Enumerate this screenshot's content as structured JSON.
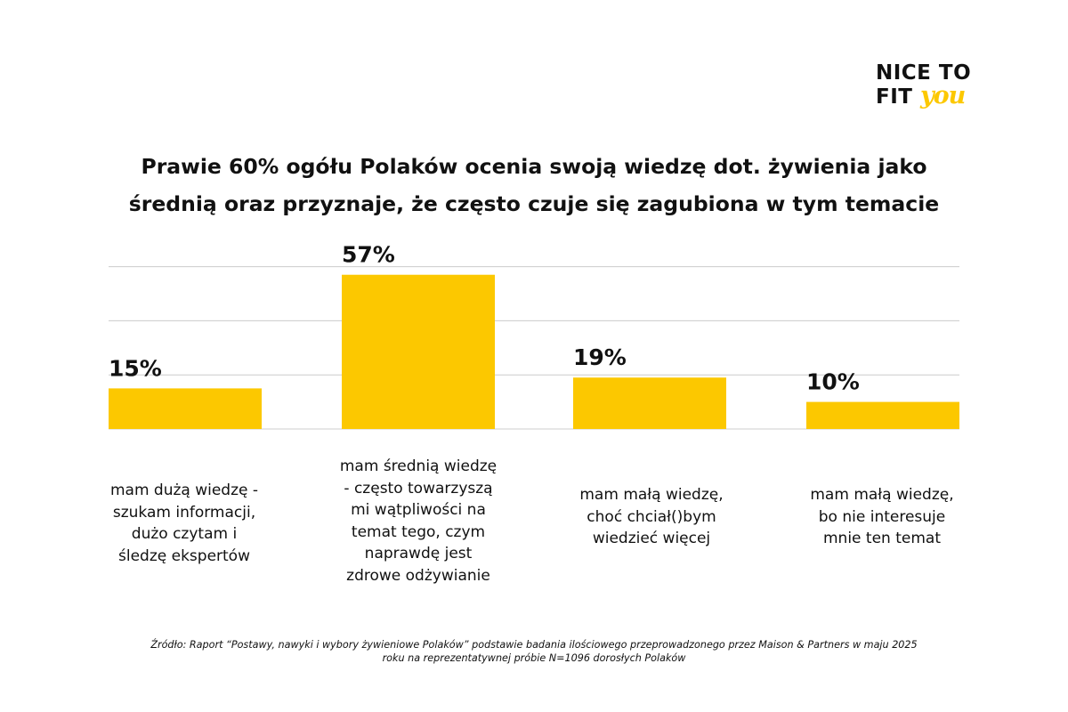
{
  "logo": {
    "line1": "NICE TO",
    "line2_main": "FIT ",
    "line2_accent": "you"
  },
  "title_lines": [
    "Prawie 60% ogółu Polaków ocenia swoją wiedzę dot. żywienia jako",
    "średnią oraz przyznaje, że często czuje się zagubiona w tym temacie"
  ],
  "colors": {
    "bar": "#fcc800",
    "grid": "#cccccc",
    "text": "#111111"
  },
  "chart_data": {
    "type": "bar",
    "title": "Prawie 60% ogółu Polaków ocenia swoją wiedzę dot. żywienia jako średnią oraz przyznaje, że często czuje się zagubiona w tym temacie",
    "categories": [
      "mam dużą wiedzę - szukam informacji, dużo czytam i śledzę ekspertów",
      "mam średnią wiedzę - często towarzyszą mi wątpliwości na temat tego, czym naprawdę jest zdrowe odżywianie",
      "mam małą wiedzę, choć chciał()bym wiedzieć więcej",
      "mam małą wiedzę, bo nie interesuje mnie ten temat"
    ],
    "values": [
      15,
      57,
      19,
      10
    ],
    "value_labels": [
      "15%",
      "57%",
      "19%",
      "10%"
    ],
    "unit": "%",
    "ylim": [
      0,
      60
    ],
    "grid": true,
    "legend": "none"
  },
  "category_label_lines": [
    [
      "mam dużą wiedzę -",
      "szukam informacji,",
      "dużo czytam i",
      "śledzę ekspertów"
    ],
    [
      "mam średnią wiedzę",
      " -  często towarzyszą",
      "mi wątpliwości na",
      "temat tego, czym",
      "naprawdę jest",
      "zdrowe odżywianie"
    ],
    [
      "mam małą wiedzę,",
      "choć chciał()bym",
      "wiedzieć więcej"
    ],
    [
      "mam małą wiedzę,",
      "bo nie interesuje",
      "mnie ten temat"
    ]
  ],
  "source_lines": [
    "Źródło: Raport “Postawy, nawyki i wybory żywieniowe Polaków” podstawie badania ilościowego przeprowadzonego przez Maison & Partners w maju 2025",
    "roku na reprezentatywnej próbie N=1096 dorosłych Polaków"
  ]
}
